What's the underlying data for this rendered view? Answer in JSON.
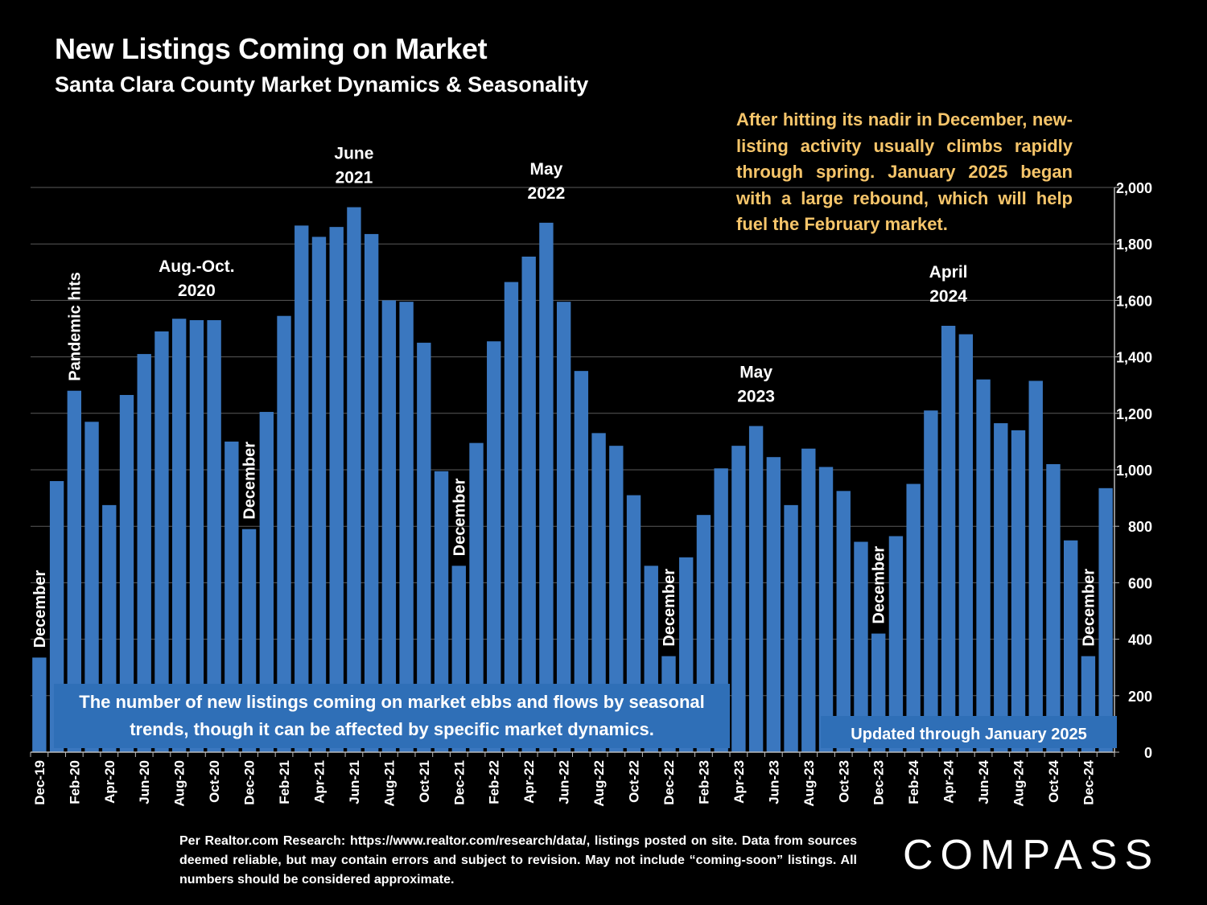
{
  "chart_data": {
    "type": "bar",
    "title": "New Listings Coming on Market",
    "subtitle": "Santa Clara County Market Dynamics & Seasonality",
    "ylim": [
      0,
      2000
    ],
    "y_ticks": [
      "0",
      "200",
      "400",
      "600",
      "800",
      "1,000",
      "1,200",
      "1,400",
      "1,600",
      "1,800",
      "2,000"
    ],
    "y_axis_position": "right",
    "grid": true,
    "color": "#3a77bf",
    "categories": [
      "Dec-19",
      "Jan-20",
      "Feb-20",
      "Mar-20",
      "Apr-20",
      "May-20",
      "Jun-20",
      "Jul-20",
      "Aug-20",
      "Sep-20",
      "Oct-20",
      "Nov-20",
      "Dec-20",
      "Jan-21",
      "Feb-21",
      "Mar-21",
      "Apr-21",
      "May-21",
      "Jun-21",
      "Jul-21",
      "Aug-21",
      "Sep-21",
      "Oct-21",
      "Nov-21",
      "Dec-21",
      "Jan-22",
      "Feb-22",
      "Mar-22",
      "Apr-22",
      "May-22",
      "Jun-22",
      "Jul-22",
      "Aug-22",
      "Sep-22",
      "Oct-22",
      "Nov-22",
      "Dec-22",
      "Jan-23",
      "Feb-23",
      "Mar-23",
      "Apr-23",
      "May-23",
      "Jun-23",
      "Jul-23",
      "Aug-23",
      "Sep-23",
      "Oct-23",
      "Nov-23",
      "Dec-23",
      "Jan-24",
      "Feb-24",
      "Mar-24",
      "Apr-24",
      "May-24",
      "Jun-24",
      "Jul-24",
      "Aug-24",
      "Sep-24",
      "Oct-24",
      "Nov-24",
      "Dec-24",
      "Jan-25"
    ],
    "x_tick_labels": [
      "Dec-19",
      "",
      "Feb-20",
      "",
      "Apr-20",
      "",
      "Jun-20",
      "",
      "Aug-20",
      "",
      "Oct-20",
      "",
      "Dec-20",
      "",
      "Feb-21",
      "",
      "Apr-21",
      "",
      "Jun-21",
      "",
      "Aug-21",
      "",
      "Oct-21",
      "",
      "Dec-21",
      "",
      "Feb-22",
      "",
      "Apr-22",
      "",
      "Jun-22",
      "",
      "Aug-22",
      "",
      "Oct-22",
      "",
      "Dec-22",
      "",
      "Feb-23",
      "",
      "Apr-23",
      "",
      "Jun-23",
      "",
      "Aug-23",
      "",
      "Oct-23",
      "",
      "Dec-23",
      "",
      "Feb-24",
      "",
      "Apr-24",
      "",
      "Jun-24",
      "",
      "Aug-24",
      "",
      "Oct-24",
      "",
      "Dec-24",
      ""
    ],
    "values": [
      335,
      960,
      1280,
      1170,
      875,
      1265,
      1410,
      1490,
      1535,
      1530,
      1530,
      1100,
      790,
      1205,
      1545,
      1865,
      1825,
      1860,
      1930,
      1835,
      1600,
      1595,
      1450,
      995,
      660,
      1095,
      1455,
      1665,
      1755,
      1875,
      1595,
      1350,
      1130,
      1085,
      910,
      660,
      340,
      690,
      840,
      1005,
      1085,
      1155,
      1045,
      875,
      1075,
      1010,
      925,
      745,
      420,
      765,
      950,
      1210,
      1510,
      1480,
      1320,
      1165,
      1140,
      1315,
      1020,
      750,
      340,
      935
    ],
    "annotations": [
      {
        "index": 0,
        "lines": [
          "December"
        ],
        "rotated": true
      },
      {
        "index": 2,
        "lines": [
          "Pandemic hits"
        ],
        "rotated": true
      },
      {
        "index": 9,
        "lines": [
          "Aug.-Oct.",
          "2020"
        ],
        "rotated": false
      },
      {
        "index": 12,
        "lines": [
          "December"
        ],
        "rotated": true
      },
      {
        "index": 18,
        "lines": [
          "June",
          "2021"
        ],
        "rotated": false
      },
      {
        "index": 24,
        "lines": [
          "December"
        ],
        "rotated": true
      },
      {
        "index": 29,
        "lines": [
          "May",
          "2022"
        ],
        "rotated": false
      },
      {
        "index": 36,
        "lines": [
          "December"
        ],
        "rotated": true
      },
      {
        "index": 41,
        "lines": [
          "May",
          "2023"
        ],
        "rotated": false
      },
      {
        "index": 48,
        "lines": [
          "December"
        ],
        "rotated": true
      },
      {
        "index": 52,
        "lines": [
          "April",
          "2024"
        ],
        "rotated": false
      },
      {
        "index": 60,
        "lines": [
          "December"
        ],
        "rotated": true
      }
    ]
  },
  "note": "After hitting its nadir in December, new-listing activity usually climbs rapidly through spring. January 2025 began with a large rebound, which will help fuel the February market.",
  "box_main": "The number of new listings coming on market ebbs and flows by seasonal trends, though it can be affected by specific market dynamics.",
  "box_updated": "Updated through January 2025",
  "footer": "Per Realtor.com Research:  https://www.realtor.com/research/data/, listings posted on site. Data from sources deemed reliable, but may contain errors and subject to revision. May not include “coming-soon” listings. All numbers should be considered approximate.",
  "logo": "COMPASS"
}
